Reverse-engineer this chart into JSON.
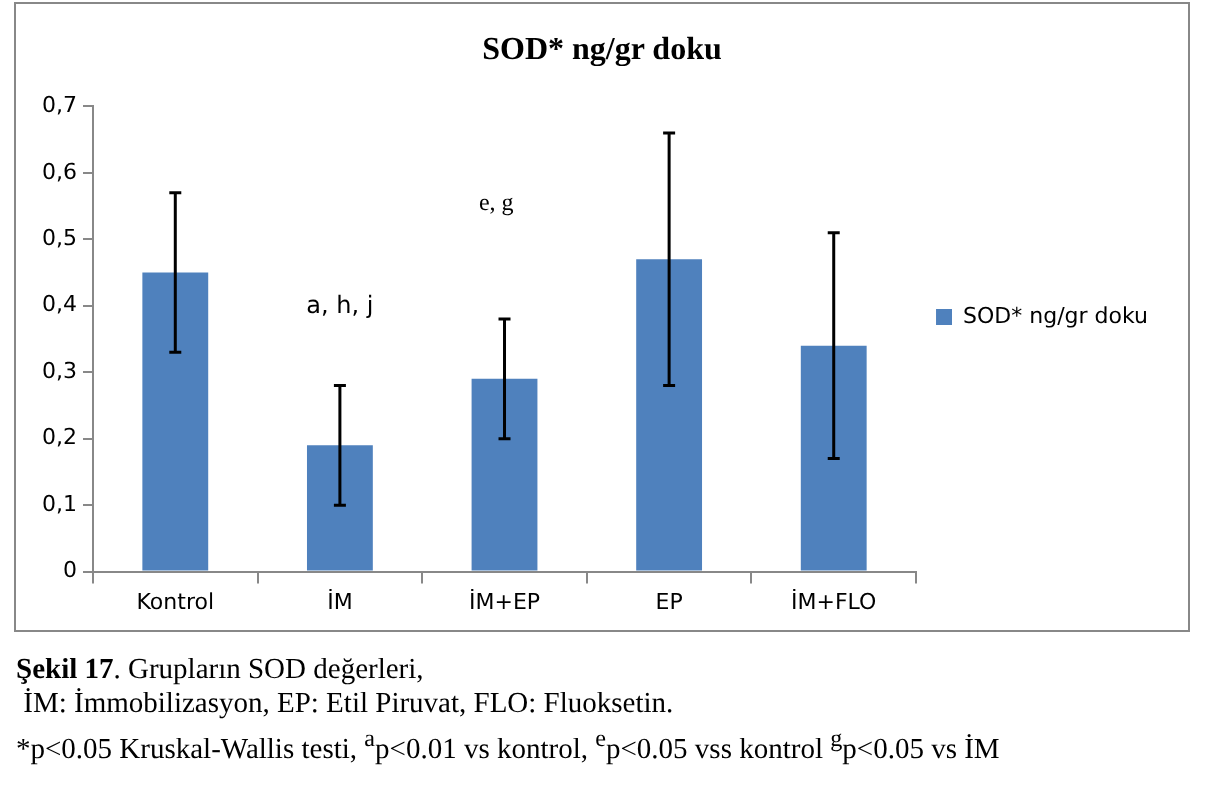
{
  "chart_data": {
    "type": "bar",
    "title": "SOD* ng/gr doku",
    "categories": [
      "Kontrol",
      "İM",
      "İM+EP",
      "EP",
      "İM+FLO"
    ],
    "series": [
      {
        "name": "SOD* ng/gr doku",
        "color": "#4f81bd",
        "values": [
          0.45,
          0.19,
          0.29,
          0.47,
          0.34
        ],
        "errors": [
          0.12,
          0.09,
          0.09,
          0.19,
          0.17
        ]
      }
    ],
    "ylim": [
      0,
      0.7
    ],
    "yticks": [
      {
        "value": 0,
        "label": "0"
      },
      {
        "value": 0.1,
        "label": "0,1"
      },
      {
        "value": 0.2,
        "label": "0,2"
      },
      {
        "value": 0.3,
        "label": "0,3"
      },
      {
        "value": 0.4,
        "label": "0,4"
      },
      {
        "value": 0.5,
        "label": "0,5"
      },
      {
        "value": 0.6,
        "label": "0,6"
      },
      {
        "value": 0.7,
        "label": "0,7"
      }
    ],
    "grid": false,
    "legend": "right",
    "annotations": [
      "a, h, j",
      "e, g",
      "**Şekil 17**. Grupların SOD değerleri,",
      " İM: İmmobilizasyon, EP: Etil Piruvat, FLO: Fluoksetin.",
      "*p<0.05 Kruskal-Wallis testi, $^{a}$p<0.01 vs kontrol, $^{e}$p<0.05 vss kontrol $^{g}$p<0.05 vs İM"
    ]
  }
}
